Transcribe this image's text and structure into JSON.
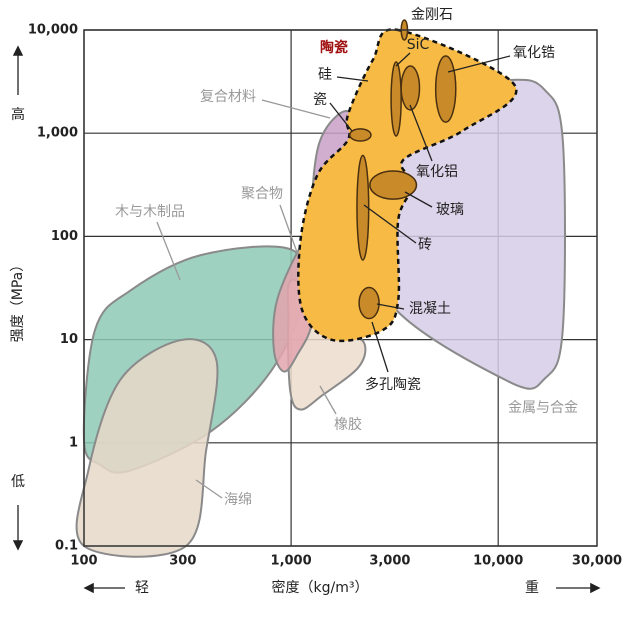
{
  "chart_data": {
    "type": "ashby",
    "x_label": "密度（kg/m³）",
    "y_label": "强度（MPa）",
    "y_high": "高",
    "y_low": "低",
    "x_low": "轻",
    "x_high": "重",
    "xscale": "log",
    "yscale": "log",
    "grid": true,
    "xlim": [
      100,
      30000
    ],
    "ylim": [
      0.1,
      10000
    ],
    "xticks": [
      100,
      300,
      {
        "value": 1000,
        "label": "1,000"
      },
      {
        "value": 3000,
        "label": "3,000"
      },
      {
        "value": 10000,
        "label": "10,000"
      },
      {
        "value": 30000,
        "label": "30,000"
      }
    ],
    "yticks": [
      0.1,
      1,
      10,
      100,
      {
        "value": 1000,
        "label": "1,000"
      },
      {
        "value": 10000,
        "label": "10,000"
      }
    ],
    "regions": [
      {
        "name": "金属与合金",
        "color": "#d6cde6",
        "x": [
          3110,
          3890,
          11300,
          16800,
          20500,
          20500,
          16800,
          11300,
          2940,
          2480
        ],
        "y": [
          690,
          2350,
          3280,
          2620,
          860,
          12.4,
          4.2,
          3.9,
          24,
          282
        ]
      },
      {
        "name": "复合材料",
        "color": "#c9a0c8",
        "x": [
          1270,
          1340,
          1680,
          1980,
          1880,
          1590
        ],
        "y": [
          115,
          690,
          1500,
          1340,
          282,
          92
        ]
      },
      {
        "name": "木与木制品",
        "color": "#8ec9b5",
        "x": [
          100,
          113,
          168,
          368,
          1010,
          1130,
          808,
          412,
          168,
          120
        ],
        "y": [
          1.06,
          12.4,
          30,
          66,
          74,
          24,
          5.1,
          1.3,
          0.54,
          0.61
        ]
      },
      {
        "name": "海绵",
        "color": "#e6d8c8",
        "x": [
          100,
          105,
          150,
          294,
          436,
          389,
          311
        ],
        "y": [
          0.1,
          0.54,
          4.1,
          9.9,
          6.3,
          0.85,
          0.1
        ]
      },
      {
        "name": "橡胶",
        "color": "#ecdccc",
        "x": [
          1035,
          1880,
          2270,
          2100,
          1420,
          1110,
          990,
          970
        ],
        "y": [
          38,
          12.4,
          8.9,
          5.3,
          2.9,
          2.1,
          3.2,
          15.5
        ]
      },
      {
        "name": "聚合物",
        "color": "#e3a5ae",
        "x": [
          826,
          855,
          1130,
          1290,
          1270,
          1070,
          925
        ],
        "y": [
          7.9,
          24,
          83,
          74,
          15.5,
          7.1,
          4.9
        ]
      },
      {
        "name": "陶瓷",
        "color": "#f7bb45",
        "x": [
          3290,
          12000,
          6820,
          3480,
          3890,
          3290,
          3290,
          2780,
          1590,
          1130,
          1110,
          1340,
          1880,
          1880,
          2480
        ],
        "y": [
          10000,
          2930,
          1070,
          550,
          315,
          144,
          24,
          12.4,
          9.9,
          19.4,
          92,
          394,
          860,
          1500,
          5120
        ]
      }
    ],
    "materials": [
      {
        "name": "金刚石",
        "x": [
          3400,
          3650
        ],
        "y": [
          8000,
          12500
        ]
      },
      {
        "name": "SiC",
        "x": [
          3040,
          3400
        ],
        "y": [
          940,
          4900
        ]
      },
      {
        "name": "氧化铝",
        "x": [
          3400,
          4170
        ],
        "y": [
          1680,
          4480
        ]
      },
      {
        "name": "氧化锆",
        "x": [
          4990,
          6240
        ],
        "y": [
          1280,
          5600
        ]
      },
      {
        "name": "瓷",
        "x": [
          1920,
          2430
        ],
        "y": [
          840,
          1100
        ]
      },
      {
        "name": "玻璃",
        "x": [
          2400,
          4030
        ],
        "y": [
          230,
          430
        ]
      },
      {
        "name": "砖",
        "x": [
          2080,
          2370
        ],
        "y": [
          59,
          610
        ]
      },
      {
        "name": "混凝土",
        "x": [
          2130,
          2660
        ],
        "y": [
          16,
          32
        ]
      }
    ],
    "material_color": "#c98a2a",
    "annotations": [
      "硅",
      "多孔陶瓷"
    ]
  }
}
